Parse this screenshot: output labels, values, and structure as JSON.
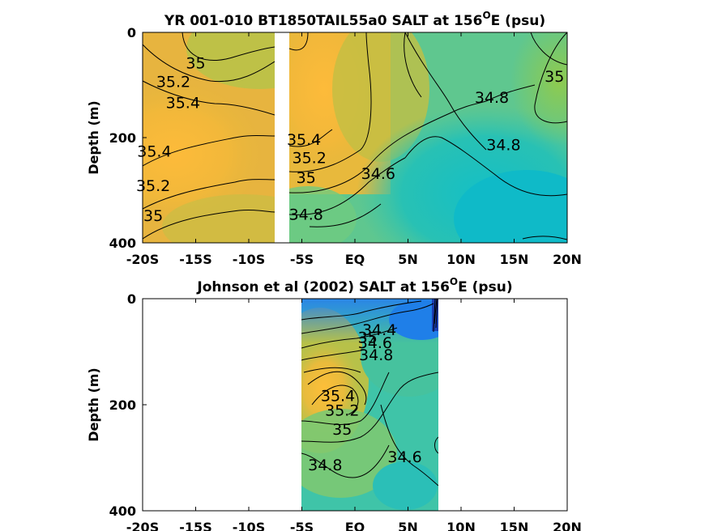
{
  "chart_data": [
    {
      "type": "heatmap",
      "title": "YR 001-010 BT1850TAIL55a0 SALT at 156",
      "title_sup": "O",
      "title_tail": "E (psu)",
      "ylabel": "Depth (m)",
      "xlabel": "",
      "xlim": [
        -20,
        20
      ],
      "ylim": [
        0,
        400
      ],
      "y_reversed": true,
      "x_ticks": [
        {
          "v": -20,
          "label": "-20S"
        },
        {
          "v": -15,
          "label": "-15S"
        },
        {
          "v": -10,
          "label": "-10S"
        },
        {
          "v": -5,
          "label": "-5S"
        },
        {
          "v": 0,
          "label": "EQ"
        },
        {
          "v": 5,
          "label": "5N"
        },
        {
          "v": 10,
          "label": "10N"
        },
        {
          "v": 15,
          "label": "15N"
        },
        {
          "v": 20,
          "label": "20N"
        }
      ],
      "y_ticks": [
        {
          "v": 0,
          "label": "0"
        },
        {
          "v": 200,
          "label": "200"
        },
        {
          "v": 400,
          "label": "400"
        }
      ],
      "gap_x": [
        -6.6,
        -5.9
      ],
      "contour_labels": [
        {
          "lat": -15.0,
          "depth": 60,
          "value": "35"
        },
        {
          "lat": -17.1,
          "depth": 95,
          "value": "35.2"
        },
        {
          "lat": -16.2,
          "depth": 135,
          "value": "35.4"
        },
        {
          "lat": -18.9,
          "depth": 228,
          "value": "35.4"
        },
        {
          "lat": -19.0,
          "depth": 293,
          "value": "35.2"
        },
        {
          "lat": -19.0,
          "depth": 350,
          "value": "35"
        },
        {
          "lat": -4.8,
          "depth": 205,
          "value": "35.4"
        },
        {
          "lat": -4.3,
          "depth": 240,
          "value": "35.2"
        },
        {
          "lat": -4.6,
          "depth": 278,
          "value": "35"
        },
        {
          "lat": -4.6,
          "depth": 348,
          "value": "34.8"
        },
        {
          "lat": 2.2,
          "depth": 270,
          "value": "34.6"
        },
        {
          "lat": 12.9,
          "depth": 125,
          "value": "34.8"
        },
        {
          "lat": 18.8,
          "depth": 85,
          "value": "35"
        },
        {
          "lat": 14.0,
          "depth": 215,
          "value": "34.8"
        }
      ]
    },
    {
      "type": "heatmap",
      "title": "Johnson et al (2002) SALT at 156",
      "title_sup": "O",
      "title_tail": "E (psu)",
      "ylabel": "Depth (m)",
      "xlabel": "",
      "xlim": [
        -20,
        20
      ],
      "ylim": [
        0,
        400
      ],
      "y_reversed": true,
      "data_x_range": [
        -5,
        8
      ],
      "x_ticks": [
        {
          "v": -20,
          "label": "-20S"
        },
        {
          "v": -15,
          "label": "-15S"
        },
        {
          "v": -10,
          "label": "-10S"
        },
        {
          "v": -5,
          "label": "-5S"
        },
        {
          "v": 0,
          "label": "EQ"
        },
        {
          "v": 5,
          "label": "5N"
        },
        {
          "v": 10,
          "label": "10N"
        },
        {
          "v": 15,
          "label": "15N"
        },
        {
          "v": 20,
          "label": "20N"
        }
      ],
      "y_ticks": [
        {
          "v": 0,
          "label": "0"
        },
        {
          "v": 200,
          "label": "200"
        },
        {
          "v": 400,
          "label": "400"
        }
      ],
      "contour_labels": [
        {
          "lat": 2.3,
          "depth": 60,
          "value": "34.4"
        },
        {
          "lat": 1.9,
          "depth": 85,
          "value": "34.6"
        },
        {
          "lat": 2.0,
          "depth": 108,
          "value": "34.8"
        },
        {
          "lat": 1.2,
          "depth": 75,
          "value": "35"
        },
        {
          "lat": -1.6,
          "depth": 185,
          "value": "35.4"
        },
        {
          "lat": -1.2,
          "depth": 212,
          "value": "35.2"
        },
        {
          "lat": -1.2,
          "depth": 248,
          "value": "35"
        },
        {
          "lat": 4.7,
          "depth": 300,
          "value": "34.6"
        },
        {
          "lat": -2.8,
          "depth": 315,
          "value": "34.8"
        }
      ]
    }
  ]
}
